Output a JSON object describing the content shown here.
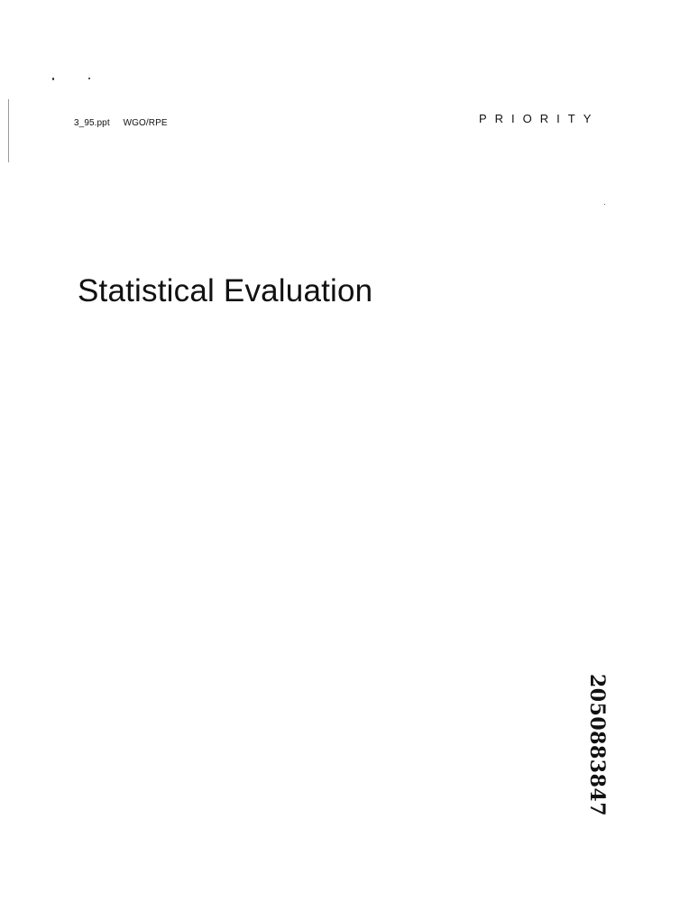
{
  "header": {
    "filename": "3_95.ppt",
    "author": "WGO/RPE",
    "classification": "PRIORITY"
  },
  "title": "Statistical Evaluation",
  "document_number": "2050883847"
}
